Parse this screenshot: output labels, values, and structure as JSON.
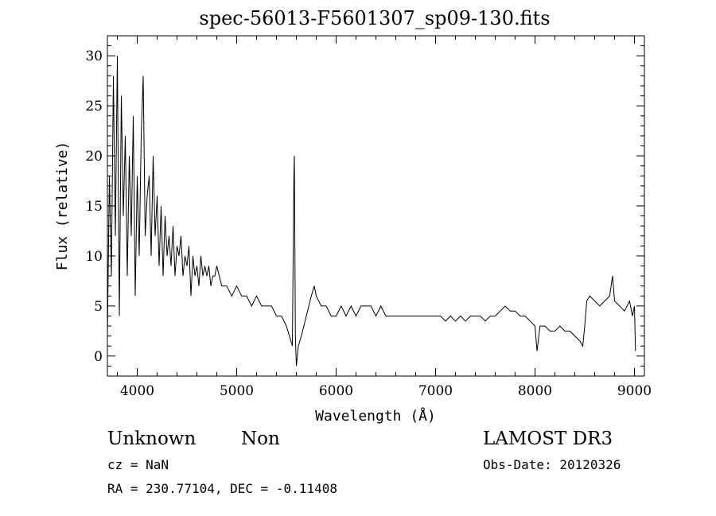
{
  "chart_data": {
    "type": "line",
    "title": "spec-56013-F5601307_sp09-130.fits",
    "xlabel": "Wavelength (Å)",
    "ylabel": "Flux (relative)",
    "xlim": [
      3700,
      9100
    ],
    "ylim": [
      -2,
      32
    ],
    "xticks": [
      4000,
      5000,
      6000,
      7000,
      8000,
      9000
    ],
    "yticks": [
      0,
      5,
      10,
      15,
      20,
      25,
      30
    ],
    "x": [
      3700,
      3720,
      3740,
      3760,
      3780,
      3800,
      3820,
      3840,
      3860,
      3880,
      3900,
      3920,
      3940,
      3960,
      3980,
      4000,
      4020,
      4040,
      4060,
      4080,
      4100,
      4120,
      4140,
      4160,
      4180,
      4200,
      4220,
      4240,
      4260,
      4280,
      4300,
      4320,
      4340,
      4360,
      4380,
      4400,
      4420,
      4440,
      4460,
      4480,
      4500,
      4520,
      4540,
      4560,
      4580,
      4600,
      4620,
      4640,
      4660,
      4680,
      4700,
      4720,
      4740,
      4760,
      4780,
      4800,
      4850,
      4900,
      4950,
      5000,
      5050,
      5100,
      5150,
      5200,
      5250,
      5300,
      5350,
      5400,
      5450,
      5500,
      5530,
      5560,
      5575,
      5580,
      5590,
      5600,
      5620,
      5650,
      5700,
      5750,
      5780,
      5800,
      5850,
      5900,
      5950,
      6000,
      6050,
      6100,
      6150,
      6200,
      6250,
      6300,
      6350,
      6400,
      6450,
      6500,
      6550,
      6600,
      6650,
      6700,
      6750,
      6800,
      6850,
      6900,
      6950,
      7000,
      7050,
      7100,
      7150,
      7200,
      7250,
      7300,
      7350,
      7400,
      7450,
      7500,
      7550,
      7600,
      7650,
      7700,
      7750,
      7800,
      7850,
      7900,
      7950,
      8000,
      8020,
      8050,
      8100,
      8150,
      8200,
      8250,
      8300,
      8350,
      8400,
      8450,
      8480,
      8500,
      8520,
      8550,
      8600,
      8650,
      8700,
      8750,
      8780,
      8800,
      8850,
      8900,
      8950,
      8980,
      9000,
      9010
    ],
    "y": [
      2,
      18,
      8,
      28,
      12,
      30,
      4,
      26,
      14,
      22,
      8,
      20,
      12,
      24,
      6,
      18,
      10,
      22,
      28,
      12,
      16,
      18,
      10,
      20,
      12,
      16,
      9,
      15,
      8,
      14,
      10,
      12,
      9,
      13,
      8,
      11,
      10,
      12,
      8,
      10,
      9,
      11,
      6,
      10,
      8,
      9,
      7,
      10,
      8,
      9,
      8,
      9,
      7,
      8,
      8,
      9,
      7,
      7,
      6,
      7,
      6,
      6,
      5,
      6,
      5,
      5,
      5,
      4,
      4,
      3,
      2,
      1,
      18,
      20,
      2,
      -1,
      1,
      2,
      4,
      6,
      7,
      6,
      5,
      5,
      4,
      4,
      5,
      4,
      5,
      4,
      5,
      5,
      5,
      4,
      5,
      4,
      4,
      4,
      4,
      4,
      4,
      4,
      4,
      4,
      4,
      4,
      4,
      3.5,
      4,
      3.5,
      4,
      3.5,
      4,
      4,
      4,
      3.5,
      4,
      4,
      4.5,
      5,
      4.5,
      4.5,
      4,
      4,
      3.5,
      3,
      0.5,
      3,
      3,
      2.5,
      2.5,
      3,
      2.5,
      2.5,
      2,
      1.5,
      1,
      3,
      5.5,
      6,
      5.5,
      5,
      5.5,
      6,
      8,
      5.5,
      5,
      4.5,
      5.5,
      4,
      5,
      0.5
    ]
  },
  "footer": {
    "object_class": "Unknown",
    "subclass": "Non",
    "cz": "cz = NaN",
    "coords": "RA = 230.77104, DEC =  -0.11408",
    "survey": "LAMOST DR3",
    "obs_date": "Obs-Date: 20120326"
  }
}
